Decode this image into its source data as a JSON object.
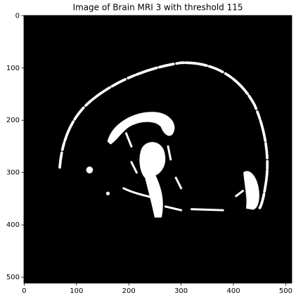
{
  "chart_data": {
    "type": "image",
    "title": "Image of Brain MRI 3 with threshold 115",
    "xlim": [
      -0.5,
      511.5
    ],
    "ylim": [
      511.5,
      -0.5
    ],
    "xticks": [
      0,
      100,
      200,
      300,
      400,
      500
    ],
    "yticks": [
      0,
      100,
      200,
      300,
      400,
      500
    ]
  }
}
